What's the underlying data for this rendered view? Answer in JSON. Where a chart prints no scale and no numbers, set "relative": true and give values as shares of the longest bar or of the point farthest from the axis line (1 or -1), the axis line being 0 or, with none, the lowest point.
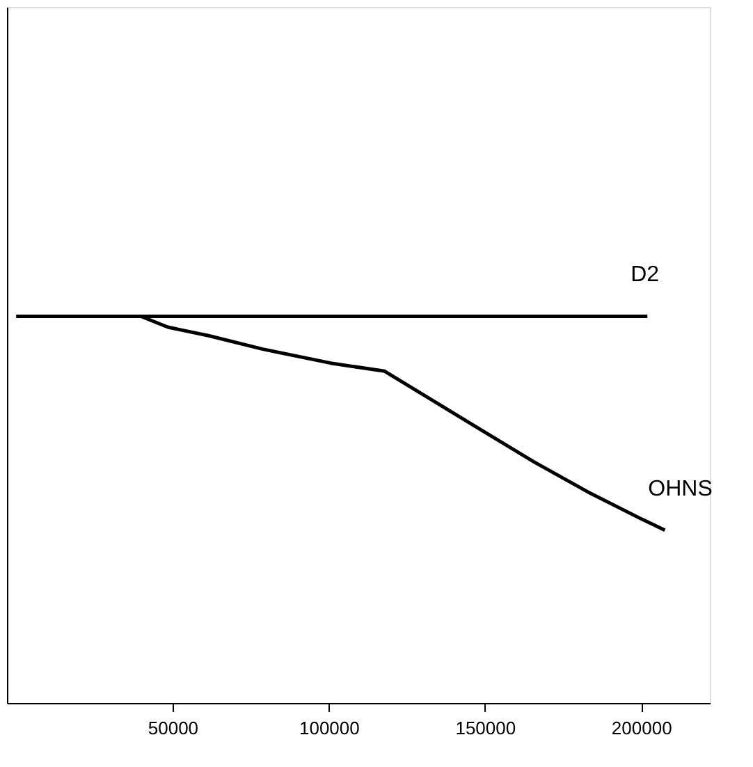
{
  "chart_data": {
    "type": "line",
    "relative": true,
    "xlim": [
      -3000,
      222000
    ],
    "xticks": [
      50000,
      100000,
      150000,
      200000
    ],
    "legend": false,
    "grid": false,
    "marker": "none",
    "line_style": "solid",
    "series": [
      {
        "name": "D2",
        "color": "#000000",
        "x": [
          0,
          202000
        ],
        "values": [
          1,
          1
        ]
      },
      {
        "name": "OHNS",
        "color": "#000000",
        "x": [
          0,
          39900,
          48500,
          61500,
          78900,
          100600,
          117900,
          130900,
          148200,
          165600,
          182900,
          200300,
          207600
        ],
        "values": [
          1,
          1,
          0.972,
          0.95,
          0.915,
          0.879,
          0.858,
          0.794,
          0.709,
          0.624,
          0.546,
          0.475,
          0.447
        ]
      }
    ]
  }
}
